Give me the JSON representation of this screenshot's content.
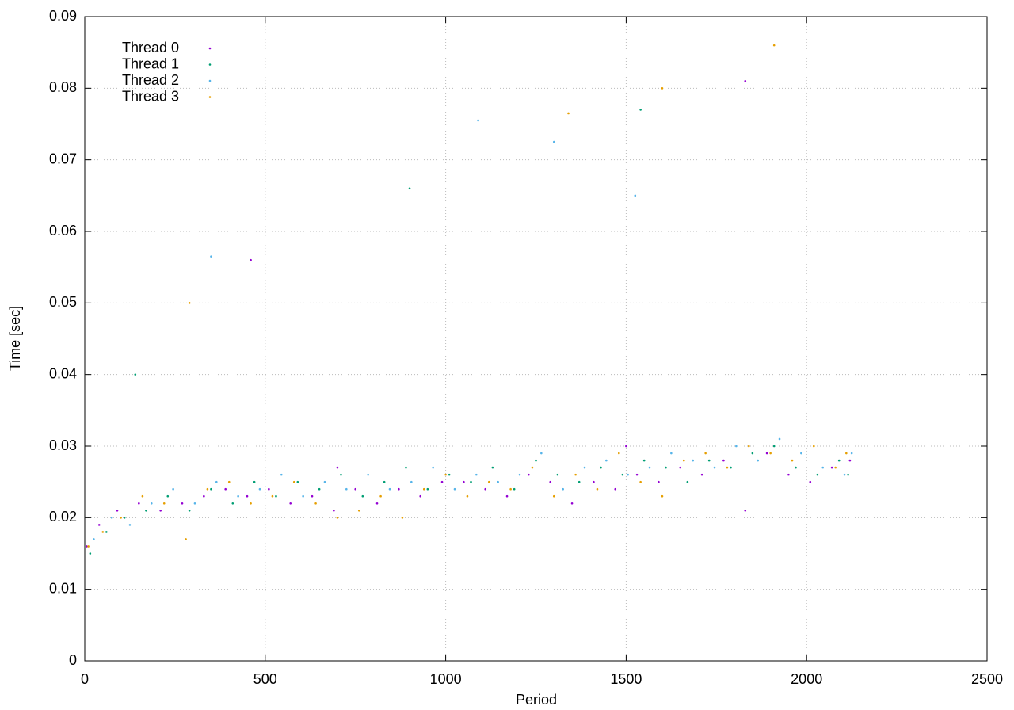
{
  "chart_data": {
    "type": "scatter",
    "x_label": "Period",
    "y_label": "Time [sec]",
    "xlim": [
      0,
      2500
    ],
    "xticks": [
      0,
      500,
      1000,
      1500,
      2000,
      2500
    ],
    "ylim": [
      0,
      0.09
    ],
    "yticks": [
      0,
      0.01,
      0.02,
      0.03,
      0.04,
      0.05,
      0.06,
      0.07,
      0.08,
      0.09
    ],
    "grid": true,
    "legend": "top-left",
    "series": [
      {
        "name": "Thread 0",
        "color": "#9400d3",
        "x": [
          5,
          40,
          90,
          150,
          210,
          270,
          330,
          390,
          450,
          510,
          570,
          630,
          690,
          750,
          810,
          870,
          930,
          990,
          1050,
          1110,
          1170,
          1230,
          1290,
          1350,
          1410,
          1470,
          1530,
          1590,
          1650,
          1710,
          1770,
          1830,
          1890,
          1950,
          2010,
          2070,
          2120,
          460,
          1830,
          700,
          1500
        ],
        "values": [
          0.016,
          0.019,
          0.021,
          0.022,
          0.021,
          0.022,
          0.023,
          0.024,
          0.023,
          0.024,
          0.022,
          0.023,
          0.021,
          0.024,
          0.022,
          0.024,
          0.023,
          0.025,
          0.025,
          0.024,
          0.023,
          0.026,
          0.025,
          0.022,
          0.025,
          0.024,
          0.026,
          0.025,
          0.027,
          0.026,
          0.028,
          0.021,
          0.029,
          0.026,
          0.025,
          0.027,
          0.028,
          0.056,
          0.081,
          0.027,
          0.03
        ]
      },
      {
        "name": "Thread 1",
        "color": "#009e73",
        "x": [
          15,
          60,
          110,
          170,
          230,
          290,
          350,
          410,
          470,
          530,
          590,
          650,
          710,
          770,
          830,
          890,
          950,
          1010,
          1070,
          1130,
          1190,
          1250,
          1310,
          1370,
          1430,
          1490,
          1550,
          1610,
          1670,
          1730,
          1790,
          1850,
          1910,
          1970,
          2030,
          2090,
          2115,
          140,
          900,
          1540
        ],
        "values": [
          0.015,
          0.018,
          0.02,
          0.021,
          0.023,
          0.021,
          0.024,
          0.022,
          0.025,
          0.023,
          0.025,
          0.024,
          0.026,
          0.023,
          0.025,
          0.027,
          0.024,
          0.026,
          0.025,
          0.027,
          0.024,
          0.028,
          0.026,
          0.025,
          0.027,
          0.026,
          0.028,
          0.027,
          0.025,
          0.028,
          0.027,
          0.029,
          0.03,
          0.027,
          0.026,
          0.028,
          0.026,
          0.04,
          0.066,
          0.077
        ]
      },
      {
        "name": "Thread 2",
        "color": "#56b4e9",
        "x": [
          25,
          75,
          125,
          185,
          245,
          305,
          365,
          425,
          485,
          545,
          605,
          665,
          725,
          785,
          845,
          905,
          965,
          1025,
          1085,
          1145,
          1205,
          1265,
          1325,
          1385,
          1445,
          1505,
          1565,
          1625,
          1685,
          1745,
          1805,
          1865,
          1925,
          1985,
          2045,
          2105,
          2125,
          350,
          1090,
          1300,
          1525
        ],
        "values": [
          0.017,
          0.02,
          0.019,
          0.022,
          0.024,
          0.022,
          0.025,
          0.023,
          0.024,
          0.026,
          0.023,
          0.025,
          0.024,
          0.026,
          0.024,
          0.025,
          0.027,
          0.024,
          0.026,
          0.025,
          0.026,
          0.029,
          0.024,
          0.027,
          0.028,
          0.026,
          0.027,
          0.029,
          0.028,
          0.027,
          0.03,
          0.028,
          0.031,
          0.029,
          0.027,
          0.026,
          0.029,
          0.0565,
          0.0755,
          0.0725,
          0.065
        ]
      },
      {
        "name": "Thread 3",
        "color": "#e69f00",
        "x": [
          10,
          50,
          100,
          160,
          220,
          280,
          340,
          400,
          460,
          520,
          580,
          640,
          700,
          760,
          820,
          880,
          940,
          1000,
          1060,
          1120,
          1180,
          1240,
          1300,
          1360,
          1420,
          1480,
          1540,
          1600,
          1660,
          1720,
          1780,
          1840,
          1900,
          1960,
          2020,
          2080,
          2110,
          290,
          1340,
          1910,
          1600
        ],
        "values": [
          0.016,
          0.018,
          0.02,
          0.023,
          0.022,
          0.017,
          0.024,
          0.025,
          0.022,
          0.023,
          0.025,
          0.022,
          0.02,
          0.021,
          0.023,
          0.02,
          0.024,
          0.026,
          0.023,
          0.025,
          0.024,
          0.027,
          0.023,
          0.026,
          0.024,
          0.029,
          0.025,
          0.023,
          0.028,
          0.029,
          0.027,
          0.03,
          0.029,
          0.028,
          0.03,
          0.027,
          0.029,
          0.05,
          0.0765,
          0.086,
          0.08
        ]
      }
    ]
  }
}
